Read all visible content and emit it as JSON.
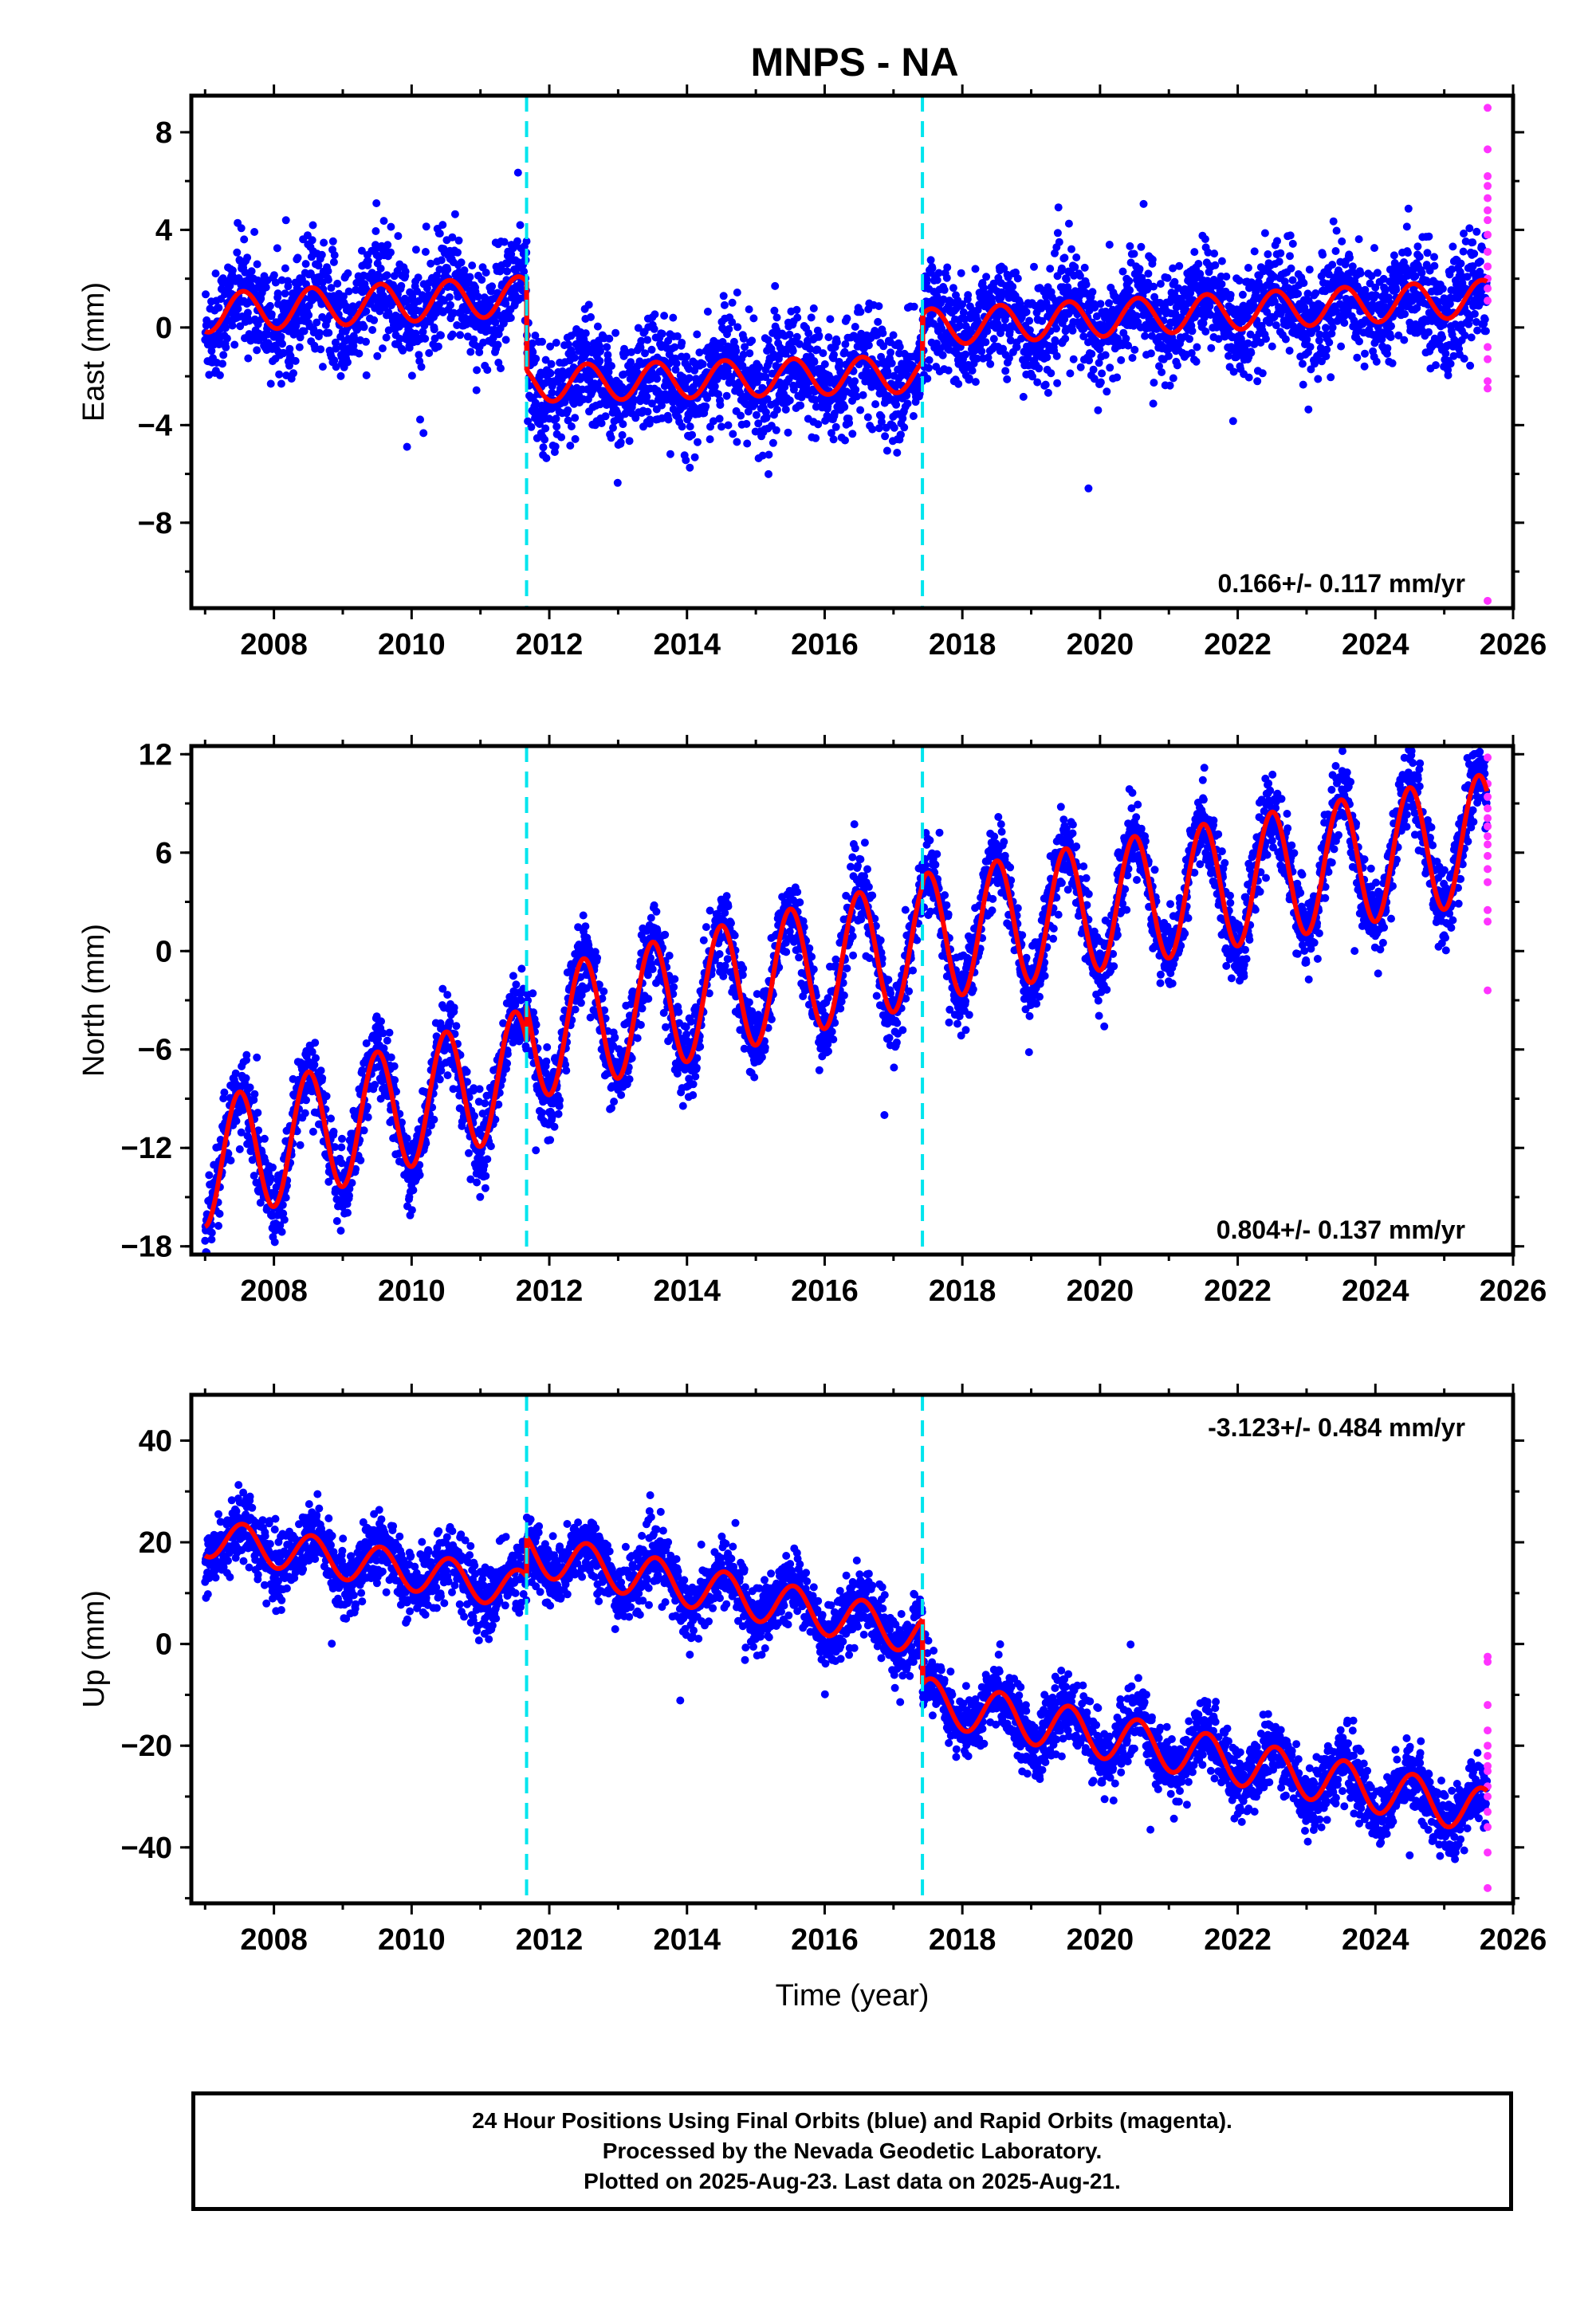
{
  "title": "MNPS - NA",
  "colors": {
    "final_points": "#0000ff",
    "rapid_points": "#ff33ff",
    "model": "#ff0000",
    "offset_lines": "#00e5ee"
  },
  "footer": {
    "line1": "24 Hour Positions Using Final Orbits (blue) and Rapid Orbits (magenta).",
    "line2": "Processed by the Nevada Geodetic Laboratory.",
    "line3": "Plotted on 2025-Aug-23. Last data on 2025-Aug-21."
  },
  "chart_data": [
    {
      "type": "scatter",
      "panel": "east",
      "ylabel": "East (mm)",
      "xlabel": "",
      "xlim": [
        2006.8,
        2026.0
      ],
      "ylim": [
        -11.5,
        9.5
      ],
      "xticks": [
        2008,
        2010,
        2012,
        2014,
        2016,
        2018,
        2020,
        2022,
        2024,
        2026
      ],
      "yticks": [
        -8,
        -4,
        0,
        4,
        8
      ],
      "yticklabels": [
        "−8",
        "−4",
        "0",
        "4",
        "8"
      ],
      "rate_label": "0.166+/- 0.117 mm/yr",
      "rate_position": "bottom-right",
      "offset_lines_x": [
        2011.67,
        2017.42
      ],
      "model_segments": [
        {
          "x0": 2007.0,
          "x1": 2011.67,
          "base0": 0.6,
          "base1": 1.3,
          "amp": 0.8,
          "phase": 0.3
        },
        {
          "x0": 2011.67,
          "x1": 2017.42,
          "base0": -2.3,
          "base1": -1.9,
          "amp": 0.75,
          "phase": 0.3
        },
        {
          "x0": 2017.42,
          "x1": 2025.62,
          "base0": 0.0,
          "base1": 1.2,
          "amp": 0.75,
          "phase": 0.3
        }
      ],
      "scatter_sigma": 1.1,
      "rapid_x": 2025.63,
      "rapid_y": [
        9.0,
        7.3,
        6.2,
        5.8,
        5.3,
        4.8,
        4.4,
        3.8,
        3.1,
        2.5,
        2.0,
        1.6,
        1.1,
        -0.8,
        -1.3,
        -2.2,
        -2.5,
        -11.2
      ]
    },
    {
      "type": "scatter",
      "panel": "north",
      "ylabel": "North (mm)",
      "xlabel": "",
      "xlim": [
        2006.8,
        2026.0
      ],
      "ylim": [
        -18.5,
        12.5
      ],
      "xticks": [
        2008,
        2010,
        2012,
        2014,
        2016,
        2018,
        2020,
        2022,
        2024,
        2026
      ],
      "yticks": [
        -18,
        -12,
        -6,
        0,
        6,
        12
      ],
      "yticklabels": [
        "−18",
        "−12",
        "−6",
        "0",
        "6",
        "12"
      ],
      "rate_label": "0.804+/- 0.137 mm/yr",
      "rate_position": "bottom-right",
      "offset_lines_x": [
        2011.67,
        2017.42
      ],
      "model_segments": [
        {
          "x0": 2007.0,
          "x1": 2011.67,
          "base0": -13.0,
          "base1": -7.3,
          "amp": 3.8,
          "phase": 0.25
        },
        {
          "x0": 2011.67,
          "x1": 2017.42,
          "base0": -5.2,
          "base1": 0.6,
          "amp": 3.9,
          "phase": 0.25
        },
        {
          "x0": 2017.42,
          "x1": 2025.62,
          "base0": 0.8,
          "base1": 6.9,
          "amp": 3.9,
          "phase": 0.25
        }
      ],
      "scatter_sigma": 1.2,
      "rapid_x": 2025.63,
      "rapid_y": [
        11.8,
        10.2,
        9.4,
        8.7,
        8.1,
        7.6,
        7.0,
        6.5,
        5.8,
        5.0,
        4.2,
        2.5,
        1.8,
        -2.4
      ]
    },
    {
      "type": "scatter",
      "panel": "up",
      "ylabel": "Up (mm)",
      "xlabel": "Time (year)",
      "xlim": [
        2006.8,
        2026.0
      ],
      "ylim": [
        -51,
        49
      ],
      "xticks": [
        2008,
        2010,
        2012,
        2014,
        2016,
        2018,
        2020,
        2022,
        2024,
        2026
      ],
      "yticks": [
        -40,
        -20,
        0,
        20,
        40
      ],
      "yticklabels": [
        "−40",
        "−20",
        "0",
        "20",
        "40"
      ],
      "rate_label": "-3.123+/- 0.484 mm/yr",
      "rate_position": "top-right",
      "offset_lines_x": [
        2011.67,
        2017.42
      ],
      "model_segments": [
        {
          "x0": 2007.0,
          "x1": 2011.67,
          "base0": 21.0,
          "base1": 10.5,
          "amp": 3.8,
          "phase": 0.3
        },
        {
          "x0": 2011.67,
          "x1": 2017.42,
          "base0": 18.0,
          "base1": 2.0,
          "amp": 4.2,
          "phase": 0.3
        },
        {
          "x0": 2017.42,
          "x1": 2025.62,
          "base0": -11.0,
          "base1": -33.0,
          "amp": 4.5,
          "phase": 0.3
        }
      ],
      "scatter_sigma": 3.3,
      "rapid_x": 2025.63,
      "rapid_y": [
        -2.5,
        -3.5,
        -12.0,
        -17.0,
        -20.0,
        -22.0,
        -24.0,
        -25.0,
        -28.0,
        -30.0,
        -33.0,
        -36.0,
        -41.0,
        -48.0
      ]
    }
  ]
}
